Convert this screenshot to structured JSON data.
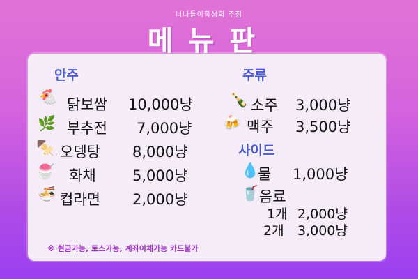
{
  "header": {
    "subtitle": "너나들이학생회 주점",
    "title": "메뉴판"
  },
  "sections": {
    "anju": {
      "title": "안주",
      "items": [
        {
          "name": "닭보쌈",
          "price": "10,000냥",
          "icon": "chicken-icon"
        },
        {
          "name": "부추전",
          "price": "7,000냥",
          "icon": "chive-icon"
        },
        {
          "name": "오뎅탕",
          "price": "8,000냥",
          "icon": "skewer-icon"
        },
        {
          "name": "화채",
          "price": "5,000냥",
          "icon": "fruit-punch-icon"
        },
        {
          "name": "컵라면",
          "price": "2,000냥",
          "icon": "cup-noodle-icon"
        }
      ]
    },
    "juryu": {
      "title": "주류",
      "items": [
        {
          "name": "소주",
          "price": "3,000냥",
          "icon": "soju-bottle-icon"
        },
        {
          "name": "맥주",
          "price": "3,500냥",
          "icon": "beer-icon"
        }
      ]
    },
    "side": {
      "title": "사이드",
      "items": [
        {
          "name": "물",
          "price": "1,000냥",
          "icon": "water-drop-icon"
        },
        {
          "name": "음료",
          "price": "",
          "icon": "drink-cup-icon"
        }
      ],
      "drink_options": [
        {
          "qty": "1개",
          "price": "2,000냥"
        },
        {
          "qty": "2개",
          "price": "3,000냥"
        }
      ]
    }
  },
  "notice": "※ 현금가능, 토스가능, 계좌이체가능 카드불가",
  "colors": {
    "section_title": "#4b59d6",
    "notice": "#a02ec9",
    "card": "#f6ebf8"
  }
}
